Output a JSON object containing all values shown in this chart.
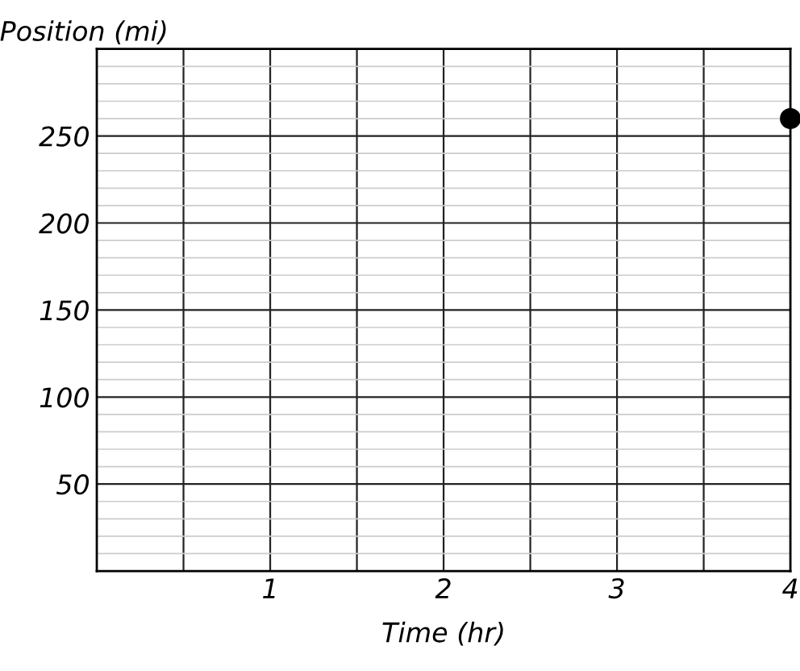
{
  "chart_data": {
    "type": "scatter",
    "xlabel": "Time (hr)",
    "ylabel": "Position (mi)",
    "x": [
      4
    ],
    "values": [
      260
    ],
    "color": "#000000",
    "marker": "circle",
    "xlim": [
      0,
      4
    ],
    "ylim": [
      0,
      300
    ],
    "xticks": [
      {
        "value": 0.5,
        "label": null
      },
      1,
      {
        "value": 1.5,
        "label": null
      },
      2,
      {
        "value": 2.5,
        "label": null
      },
      3,
      {
        "value": 3.5,
        "label": null
      },
      4
    ],
    "yticks": [
      {
        "value": 10,
        "label": null
      },
      {
        "value": 20,
        "label": null
      },
      {
        "value": 30,
        "label": null
      },
      {
        "value": 40,
        "label": null
      },
      50,
      {
        "value": 60,
        "label": null
      },
      {
        "value": 70,
        "label": null
      },
      {
        "value": 80,
        "label": null
      },
      {
        "value": 90,
        "label": null
      },
      100,
      {
        "value": 110,
        "label": null
      },
      {
        "value": 120,
        "label": null
      },
      {
        "value": 130,
        "label": null
      },
      {
        "value": 140,
        "label": null
      },
      150,
      {
        "value": 160,
        "label": null
      },
      {
        "value": 170,
        "label": null
      },
      {
        "value": 180,
        "label": null
      },
      {
        "value": 190,
        "label": null
      },
      200,
      {
        "value": 210,
        "label": null
      },
      {
        "value": 220,
        "label": null
      },
      {
        "value": 230,
        "label": null
      },
      {
        "value": 240,
        "label": null
      },
      250,
      {
        "value": 260,
        "label": null
      },
      {
        "value": 270,
        "label": null
      },
      {
        "value": 280,
        "label": null
      },
      {
        "value": 290,
        "label": null
      }
    ],
    "grid": true
  }
}
